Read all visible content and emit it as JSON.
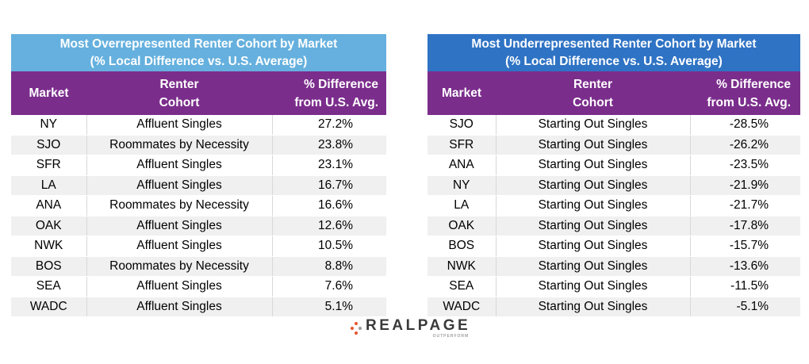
{
  "over": {
    "title_line1": "Most Overrepresented Renter Cohort by Market",
    "title_line2": "(% Local Difference vs. U.S. Average)",
    "headers": {
      "market": "Market",
      "cohort_line1": "Renter",
      "cohort_line2": "Cohort",
      "diff_line1": "% Difference",
      "diff_line2": "from U.S. Avg."
    },
    "rows": [
      {
        "market": "NY",
        "cohort": "Affluent Singles",
        "diff": "27.2%"
      },
      {
        "market": "SJO",
        "cohort": "Roommates by Necessity",
        "diff": "23.8%"
      },
      {
        "market": "SFR",
        "cohort": "Affluent Singles",
        "diff": "23.1%"
      },
      {
        "market": "LA",
        "cohort": "Affluent Singles",
        "diff": "16.7%"
      },
      {
        "market": "ANA",
        "cohort": "Roommates by Necessity",
        "diff": "16.6%"
      },
      {
        "market": "OAK",
        "cohort": "Affluent Singles",
        "diff": "12.6%"
      },
      {
        "market": "NWK",
        "cohort": "Affluent Singles",
        "diff": "10.5%"
      },
      {
        "market": "BOS",
        "cohort": "Roommates by Necessity",
        "diff": "8.8%"
      },
      {
        "market": "SEA",
        "cohort": "Affluent Singles",
        "diff": "7.6%"
      },
      {
        "market": "WADC",
        "cohort": "Affluent Singles",
        "diff": "5.1%"
      }
    ]
  },
  "under": {
    "title_line1": "Most Underrepresented Renter Cohort by Market",
    "title_line2": "(% Local Difference vs. U.S. Average)",
    "headers": {
      "market": "Market",
      "cohort_line1": "Renter",
      "cohort_line2": "Cohort",
      "diff_line1": "% Difference",
      "diff_line2": "from U.S. Avg."
    },
    "rows": [
      {
        "market": "SJO",
        "cohort": "Starting Out Singles",
        "diff": "-28.5%"
      },
      {
        "market": "SFR",
        "cohort": "Starting Out Singles",
        "diff": "-26.2%"
      },
      {
        "market": "ANA",
        "cohort": "Starting Out Singles",
        "diff": "-23.5%"
      },
      {
        "market": "NY",
        "cohort": "Starting Out Singles",
        "diff": "-21.9%"
      },
      {
        "market": "LA",
        "cohort": "Starting Out Singles",
        "diff": "-21.7%"
      },
      {
        "market": "OAK",
        "cohort": "Starting Out Singles",
        "diff": "-17.8%"
      },
      {
        "market": "BOS",
        "cohort": "Starting Out Singles",
        "diff": "-15.7%"
      },
      {
        "market": "NWK",
        "cohort": "Starting Out Singles",
        "diff": "-13.6%"
      },
      {
        "market": "SEA",
        "cohort": "Starting Out Singles",
        "diff": "-11.5%"
      },
      {
        "market": "WADC",
        "cohort": "Starting Out Singles",
        "diff": "-5.1%"
      }
    ]
  },
  "logo": {
    "name": "REALPAGE",
    "tagline": "OUTPERFORM"
  },
  "colors": {
    "over_title": "#65b0de",
    "under_title": "#2f73c4",
    "header": "#7b2d8c",
    "logo_accent": "#e8542f"
  }
}
